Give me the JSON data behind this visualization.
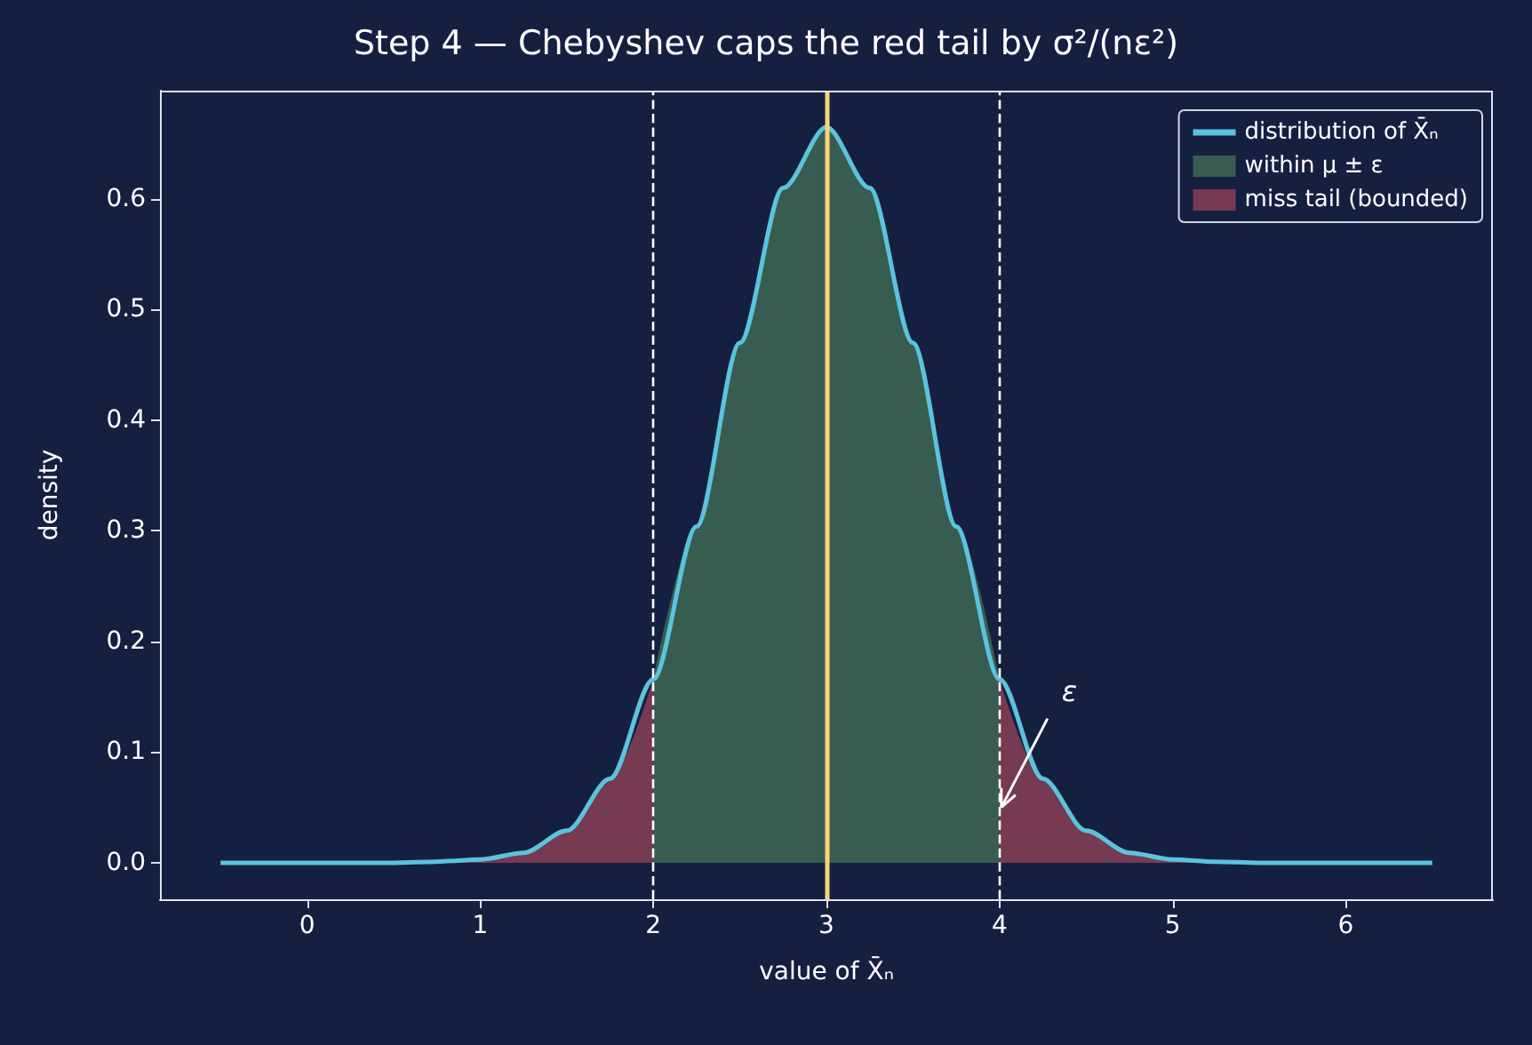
{
  "chart_data": {
    "type": "line",
    "title": "Step 4 — Chebyshev caps the red tail by σ²/(nε²)",
    "xlabel": "value of X̄ₙ",
    "ylabel": "density",
    "xlim": [
      -0.85,
      6.85
    ],
    "xticks": [
      0,
      1,
      2,
      3,
      4,
      5,
      6
    ],
    "ylim": [
      -0.033,
      0.698
    ],
    "yticks": [
      {
        "value": 0,
        "label": "0.0"
      },
      0.1,
      0.2,
      0.3,
      0.4,
      0.5,
      0.6
    ],
    "grid": false,
    "legend": "top right",
    "marker": "none",
    "line_style": "solid",
    "series": [
      {
        "name": "distribution of X̄ₙ",
        "color": "#5bc3dc",
        "x": [
          -0.5,
          -0.25,
          0,
          0.25,
          0.5,
          0.75,
          1,
          1.25,
          1.5,
          1.75,
          2,
          2.25,
          2.5,
          2.75,
          3,
          3.25,
          3.5,
          3.75,
          4,
          4.25,
          4.5,
          4.75,
          5,
          5.25,
          5.5,
          5.75,
          6,
          6.25,
          6.5
        ],
        "values": [
          0,
          0,
          0,
          0,
          0,
          0.001,
          0.003,
          0.009,
          0.029,
          0.076,
          0.166,
          0.304,
          0.47,
          0.61,
          0.665,
          0.61,
          0.47,
          0.304,
          0.166,
          0.076,
          0.029,
          0.009,
          0.003,
          0.001,
          0,
          0,
          0,
          0,
          0
        ]
      },
      {
        "name": "within μ ± ε",
        "type": "area",
        "color": "#385c50",
        "x": [
          2,
          2.25,
          2.5,
          2.75,
          3,
          3.25,
          3.5,
          3.75,
          4
        ],
        "values": [
          0.166,
          0.304,
          0.47,
          0.61,
          0.665,
          0.61,
          0.47,
          0.304,
          0.166
        ]
      },
      {
        "name": "miss tail (bounded)",
        "type": "area",
        "color": "#763a52",
        "x": [
          -0.5,
          -0.25,
          0,
          0.25,
          0.5,
          0.75,
          1,
          1.25,
          1.5,
          1.75,
          2,
          2.25,
          2.5,
          2.75,
          3,
          3.25,
          3.5,
          3.75,
          4,
          4.25,
          4.5,
          4.75,
          5,
          5.25,
          5.5,
          5.75,
          6,
          6.25,
          6.5
        ],
        "values": [
          0,
          0,
          0,
          0,
          0,
          0.001,
          0.003,
          0.009,
          0.029,
          0.076,
          0.166,
          null,
          null,
          null,
          null,
          null,
          null,
          null,
          0.166,
          0.076,
          0.029,
          0.009,
          0.003,
          0.001,
          0,
          0,
          0,
          0,
          0
        ]
      }
    ],
    "ref_lines": [
      {
        "axis": "x",
        "value": 2,
        "color": "#ffffff",
        "line_style": "dashed"
      },
      {
        "axis": "x",
        "value": 4,
        "color": "#ffffff",
        "line_style": "dashed"
      },
      {
        "axis": "x",
        "value": 3,
        "color": "#f5d67a",
        "line_style": "solid"
      }
    ],
    "annotations": [
      {
        "text": "ε",
        "x": 4,
        "y": 0.05
      }
    ]
  }
}
